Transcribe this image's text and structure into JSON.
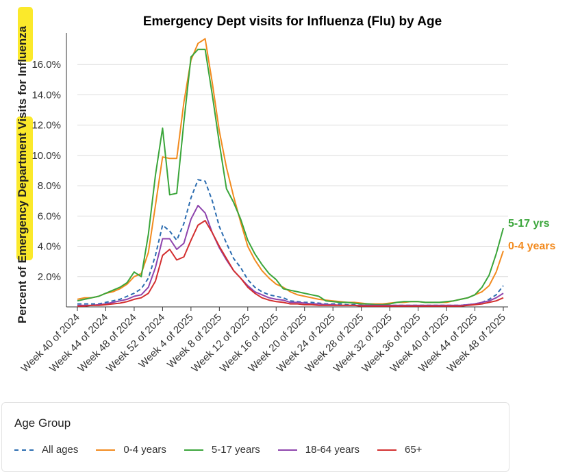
{
  "chart_data": {
    "type": "line",
    "title": "Emergency Dept visits for Influenza (Flu) by Age",
    "ylabel": "Percent of Emergency Department Visits for Influenza",
    "xlabel": "",
    "ylim": [
      0,
      18
    ],
    "yticks": [
      2,
      4,
      6,
      8,
      10,
      12,
      14,
      16
    ],
    "ytick_labels": [
      "2.0%",
      "4.0%",
      "6.0%",
      "8.0%",
      "10.0%",
      "12.0%",
      "14.0%",
      "16.0%"
    ],
    "grid": true,
    "x_tick_labels": [
      {
        "week": 0,
        "label": "Week 40 of 2024"
      },
      {
        "week": 4,
        "label": "Week 44 of 2024"
      },
      {
        "week": 8,
        "label": "Week 48 of 2024"
      },
      {
        "week": 12,
        "label": "Week 52 of 2024"
      },
      {
        "week": 16,
        "label": "Week 4 of 2025"
      },
      {
        "week": 20,
        "label": "Week 8 of 2025"
      },
      {
        "week": 24,
        "label": "Week 12 of 2025"
      },
      {
        "week": 28,
        "label": "Week 16 of 2025"
      },
      {
        "week": 32,
        "label": "Week 20 of 2025"
      },
      {
        "week": 36,
        "label": "Week 24 of 2025"
      },
      {
        "week": 40,
        "label": "Week 28 of 2025"
      },
      {
        "week": 44,
        "label": "Week 32 of 2025"
      },
      {
        "week": 48,
        "label": "Week 36 of 2025"
      },
      {
        "week": 52,
        "label": "Week 40 of 2025"
      },
      {
        "week": 56,
        "label": "Week 44 of 2025"
      },
      {
        "week": 60,
        "label": "Week 48 of 2025"
      }
    ],
    "series": [
      {
        "name": "All ages",
        "color": "#2b6cb0",
        "dashed": true,
        "end_label": "",
        "values": [
          0.2,
          0.2,
          0.2,
          0.2,
          0.3,
          0.4,
          0.5,
          0.7,
          0.9,
          1.2,
          1.9,
          3.4,
          5.4,
          5.0,
          4.4,
          5.5,
          7.2,
          8.4,
          8.3,
          7.0,
          5.3,
          4.2,
          3.2,
          2.6,
          1.8,
          1.3,
          1.0,
          0.8,
          0.7,
          0.6,
          0.4,
          0.35,
          0.3,
          0.3,
          0.25,
          0.2,
          0.2,
          0.2,
          0.15,
          0.15,
          0.1,
          0.1,
          0.1,
          0.1,
          0.1,
          0.1,
          0.1,
          0.1,
          0.1,
          0.1,
          0.1,
          0.1,
          0.1,
          0.1,
          0.1,
          0.15,
          0.2,
          0.3,
          0.5,
          0.8,
          1.4
        ]
      },
      {
        "name": "0-4 years",
        "color": "#f28a1e",
        "dashed": false,
        "end_label": "0-4 years",
        "values": [
          0.5,
          0.6,
          0.6,
          0.7,
          0.9,
          1.0,
          1.2,
          1.5,
          2.0,
          2.2,
          3.6,
          6.7,
          9.9,
          9.8,
          9.8,
          13.5,
          16.3,
          17.4,
          17.7,
          14.8,
          11.6,
          9.2,
          7.3,
          5.6,
          4.0,
          3.1,
          2.4,
          1.9,
          1.5,
          1.3,
          1.0,
          0.8,
          0.7,
          0.6,
          0.5,
          0.45,
          0.4,
          0.35,
          0.3,
          0.3,
          0.25,
          0.2,
          0.2,
          0.2,
          0.25,
          0.3,
          0.3,
          0.35,
          0.35,
          0.3,
          0.3,
          0.3,
          0.3,
          0.4,
          0.5,
          0.6,
          0.8,
          1.0,
          1.4,
          2.3,
          3.7
        ]
      },
      {
        "name": "5-17 yrs",
        "color": "#3aa53a",
        "dashed": false,
        "end_label": "5-17 yrs",
        "values": [
          0.4,
          0.5,
          0.6,
          0.7,
          0.9,
          1.1,
          1.3,
          1.6,
          2.3,
          2.0,
          4.8,
          8.7,
          11.8,
          7.4,
          7.5,
          12.2,
          16.5,
          17.0,
          17.0,
          14.0,
          10.8,
          7.8,
          6.9,
          5.8,
          4.4,
          3.5,
          2.8,
          2.2,
          1.8,
          1.2,
          1.1,
          1.0,
          0.9,
          0.8,
          0.7,
          0.4,
          0.35,
          0.3,
          0.3,
          0.25,
          0.2,
          0.2,
          0.15,
          0.15,
          0.2,
          0.3,
          0.35,
          0.35,
          0.35,
          0.3,
          0.3,
          0.3,
          0.35,
          0.4,
          0.5,
          0.6,
          0.8,
          1.3,
          2.1,
          3.5,
          5.2
        ]
      },
      {
        "name": "18-64 years",
        "color": "#8e44ad",
        "dashed": false,
        "end_label": "",
        "values": [
          0.1,
          0.1,
          0.1,
          0.15,
          0.2,
          0.3,
          0.4,
          0.5,
          0.7,
          0.8,
          1.3,
          2.6,
          4.5,
          4.5,
          3.8,
          4.2,
          5.8,
          6.7,
          6.2,
          4.9,
          3.9,
          3.1,
          2.4,
          1.9,
          1.4,
          1.0,
          0.8,
          0.6,
          0.5,
          0.45,
          0.3,
          0.3,
          0.25,
          0.2,
          0.2,
          0.15,
          0.15,
          0.1,
          0.1,
          0.1,
          0.1,
          0.1,
          0.1,
          0.1,
          0.1,
          0.1,
          0.1,
          0.1,
          0.1,
          0.1,
          0.1,
          0.1,
          0.1,
          0.1,
          0.1,
          0.15,
          0.2,
          0.3,
          0.4,
          0.6,
          0.9
        ]
      },
      {
        "name": "65+",
        "color": "#d32f2f",
        "dashed": false,
        "end_label": "",
        "values": [
          0.05,
          0.05,
          0.1,
          0.1,
          0.15,
          0.2,
          0.25,
          0.35,
          0.5,
          0.6,
          0.9,
          1.7,
          3.4,
          3.8,
          3.1,
          3.3,
          4.4,
          5.4,
          5.7,
          4.9,
          4.0,
          3.2,
          2.4,
          1.9,
          1.3,
          0.9,
          0.6,
          0.45,
          0.35,
          0.3,
          0.2,
          0.2,
          0.15,
          0.15,
          0.1,
          0.1,
          0.1,
          0.1,
          0.1,
          0.1,
          0.05,
          0.05,
          0.05,
          0.05,
          0.05,
          0.05,
          0.05,
          0.05,
          0.05,
          0.05,
          0.05,
          0.05,
          0.05,
          0.05,
          0.05,
          0.1,
          0.15,
          0.2,
          0.3,
          0.4,
          0.6
        ]
      }
    ]
  },
  "legend": {
    "title": "Age Group",
    "items": [
      {
        "label": "All ages",
        "color": "#2b6cb0",
        "dashed": true
      },
      {
        "label": "0-4 years",
        "color": "#f28a1e",
        "dashed": false
      },
      {
        "label": "5-17 years",
        "color": "#3aa53a",
        "dashed": false
      },
      {
        "label": "18-64 years",
        "color": "#8e44ad",
        "dashed": false
      },
      {
        "label": "65+",
        "color": "#d32f2f",
        "dashed": false
      }
    ]
  },
  "highlight_color": "#fbe92b"
}
